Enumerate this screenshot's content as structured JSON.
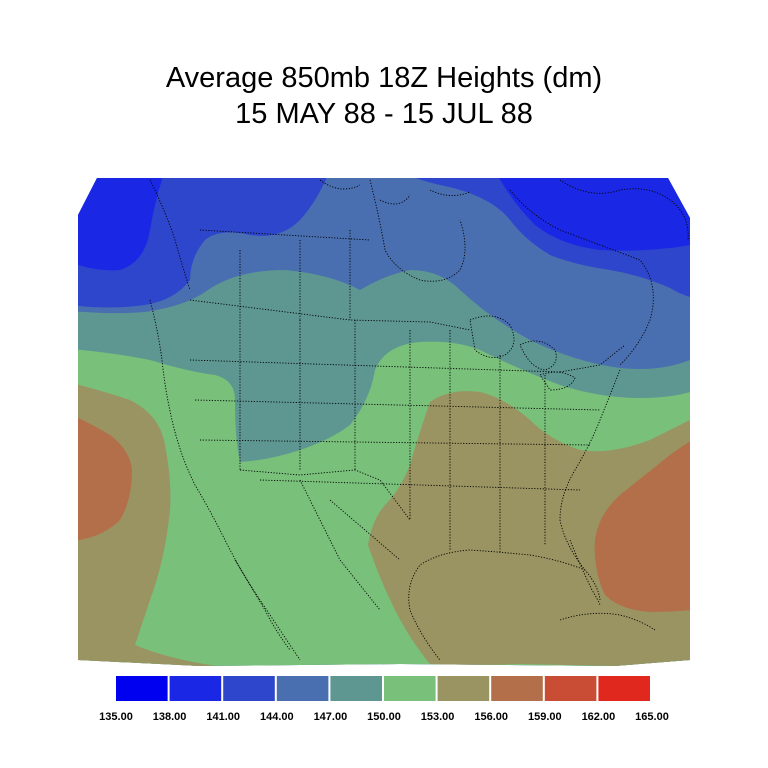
{
  "title": {
    "line1": "Average 850mb 18Z Heights (dm)",
    "line2": "15 MAY 88 - 15 JUL 88"
  },
  "legend": {
    "labels": [
      "135.00",
      "138.00",
      "141.00",
      "144.00",
      "147.00",
      "150.00",
      "153.00",
      "156.00",
      "159.00",
      "162.00",
      "165.00"
    ],
    "colors": [
      "#0000f0",
      "#1a28e6",
      "#2e46cc",
      "#4a6fb0",
      "#5e9792",
      "#79c07a",
      "#9a9462",
      "#b36f49",
      "#c84d34",
      "#e0281e"
    ]
  },
  "map": {
    "region": "north-america-conus",
    "band_colors": {
      "b138": "#1a28e6",
      "b141": "#2e46cc",
      "b144": "#4a6fb0",
      "b147": "#5e9792",
      "b150": "#79c07a",
      "b153": "#9a9462",
      "b156": "#b36f49"
    }
  }
}
